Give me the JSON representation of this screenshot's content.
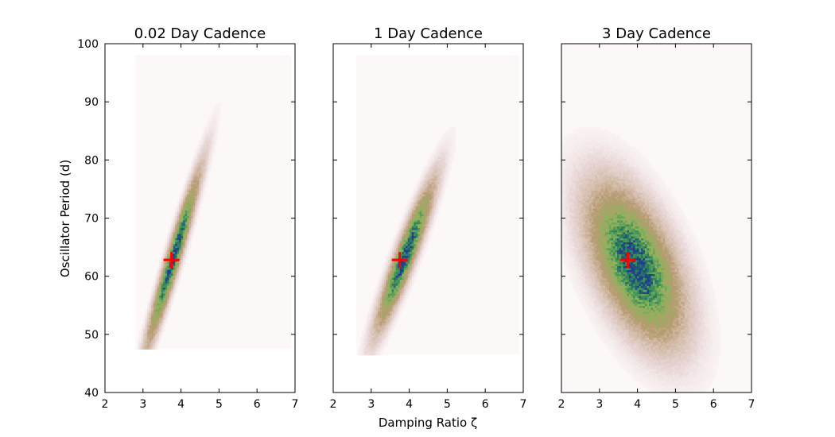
{
  "figure": {
    "ylabel": "Oscillator Period (d)",
    "xlabel": "Damping Ratio ζ",
    "colors": {
      "background": "#fdf8f8",
      "low": "#e8d6d6",
      "mid": "#b89b72",
      "high": "#8db35a",
      "peak": "#2e8b57",
      "max": "#1f3f8a",
      "marker": "#ff0000"
    }
  },
  "chart_data": [
    {
      "type": "heatmap",
      "title": "0.02 Day Cadence",
      "xlim": [
        2,
        7
      ],
      "ylim": [
        40,
        100
      ],
      "xticks": [
        "2",
        "3",
        "4",
        "5",
        "6",
        "7"
      ],
      "yticks": [
        "40",
        "50",
        "60",
        "70",
        "80",
        "90",
        "100"
      ],
      "support": {
        "x": [
          2.8,
          6.9
        ],
        "y": [
          47.5,
          98
        ]
      },
      "distribution": {
        "center": [
          3.8,
          63
        ],
        "sx": 0.42,
        "sy": 9,
        "rho": 0.96
      },
      "marker": {
        "x": 3.75,
        "y": 62.8
      }
    },
    {
      "type": "heatmap",
      "title": "1 Day Cadence",
      "xlim": [
        2,
        7
      ],
      "ylim": [
        40,
        100
      ],
      "xticks": [
        "2",
        "3",
        "4",
        "5",
        "6",
        "7"
      ],
      "yticks": [
        "40",
        "50",
        "60",
        "70",
        "80",
        "90",
        "100"
      ],
      "support": {
        "x": [
          2.6,
          6.9
        ],
        "y": [
          46.5,
          98
        ]
      },
      "distribution": {
        "center": [
          3.9,
          63.5
        ],
        "sx": 0.45,
        "sy": 7.5,
        "rho": 0.93
      },
      "marker": {
        "x": 3.75,
        "y": 62.8
      }
    },
    {
      "type": "heatmap",
      "title": "3 Day Cadence",
      "xlim": [
        2,
        7
      ],
      "ylim": [
        40,
        100
      ],
      "xticks": [
        "2",
        "3",
        "4",
        "5",
        "6",
        "7"
      ],
      "yticks": [
        "40",
        "50",
        "60",
        "70",
        "80",
        "90",
        "100"
      ],
      "support": {
        "x": [
          2,
          7
        ],
        "y": [
          40,
          100
        ]
      },
      "distribution": {
        "center": [
          3.95,
          62
        ],
        "sx": 0.75,
        "sy": 8,
        "rho": -0.55
      },
      "marker": {
        "x": 3.75,
        "y": 62.8
      }
    }
  ]
}
